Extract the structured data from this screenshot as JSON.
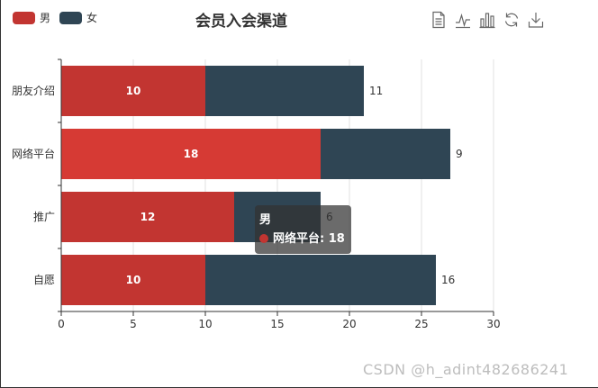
{
  "title": "会员入会渠道",
  "legend": [
    {
      "name": "男",
      "color": "#c23531"
    },
    {
      "name": "女",
      "color": "#2f4554"
    }
  ],
  "toolbox": [
    "data-view-icon",
    "line-chart-icon",
    "bar-chart-icon",
    "restore-icon",
    "download-icon"
  ],
  "chart_data": {
    "type": "bar",
    "orientation": "horizontal",
    "stacked": true,
    "title": "会员入会渠道",
    "categories": [
      "自愿",
      "推广",
      "网络平台",
      "朋友介绍"
    ],
    "series": [
      {
        "name": "男",
        "values": [
          10,
          12,
          18,
          10
        ],
        "color": "#c23531",
        "label_position": "inside"
      },
      {
        "name": "女",
        "values": [
          16,
          6,
          9,
          11
        ],
        "color": "#2f4554",
        "label_position": "right"
      }
    ],
    "xlim": [
      0,
      30
    ],
    "x_ticks": [
      0,
      5,
      10,
      15,
      20,
      25,
      30
    ],
    "grid": true,
    "legend_position": "top-left",
    "highlighted": {
      "category": "网络平台",
      "series": "男",
      "color": "#d63a34"
    }
  },
  "tooltip": {
    "title": "男",
    "row": "网络平台: 18",
    "dot_color": "#c23531"
  },
  "watermark": "CSDN @h_adint482686241"
}
